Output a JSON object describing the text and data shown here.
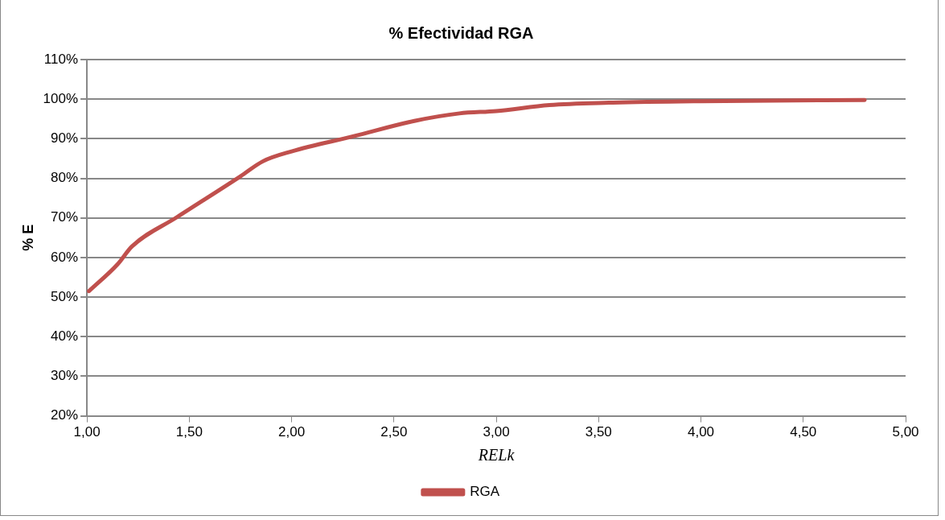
{
  "chart_data": {
    "type": "line",
    "title": "% Efectividad RGA",
    "xlabel": "RELk",
    "ylabel": "% E",
    "xlim": [
      1,
      5
    ],
    "xticks": [
      {
        "value": 1,
        "label": "1,00"
      },
      {
        "value": 1.5,
        "label": "1,50"
      },
      {
        "value": 2,
        "label": "2,00"
      },
      {
        "value": 2.5,
        "label": "2,50"
      },
      {
        "value": 3,
        "label": "3,00"
      },
      {
        "value": 3.5,
        "label": "3,50"
      },
      {
        "value": 4,
        "label": "4,00"
      },
      {
        "value": 4.5,
        "label": "4,50"
      },
      {
        "value": 5,
        "label": "5,00"
      }
    ],
    "ylim": [
      20,
      110
    ],
    "yticks": [
      {
        "value": 20,
        "label": "20%"
      },
      {
        "value": 30,
        "label": "30%"
      },
      {
        "value": 40,
        "label": "40%"
      },
      {
        "value": 50,
        "label": "50%"
      },
      {
        "value": 60,
        "label": "60%"
      },
      {
        "value": 70,
        "label": "70%"
      },
      {
        "value": 80,
        "label": "80%"
      },
      {
        "value": 90,
        "label": "90%"
      },
      {
        "value": 100,
        "label": "100%"
      },
      {
        "value": 110,
        "label": "110%"
      }
    ],
    "grid": "y",
    "legend": "bottom",
    "marker": "none",
    "line_style": "solid",
    "series": [
      {
        "name": "RGA",
        "color": "#c0504d",
        "x": [
          1.01,
          1.15,
          1.22,
          1.44,
          1.75,
          1.86,
          2.0,
          2.3,
          2.6,
          2.82,
          3.0,
          3.26,
          3.55,
          4.0,
          4.8
        ],
        "values": [
          51.5,
          58.3,
          62.8,
          70.2,
          80.5,
          84.3,
          86.8,
          90.6,
          94.5,
          96.4,
          97.0,
          98.5,
          99.1,
          99.5,
          99.8
        ]
      }
    ]
  }
}
